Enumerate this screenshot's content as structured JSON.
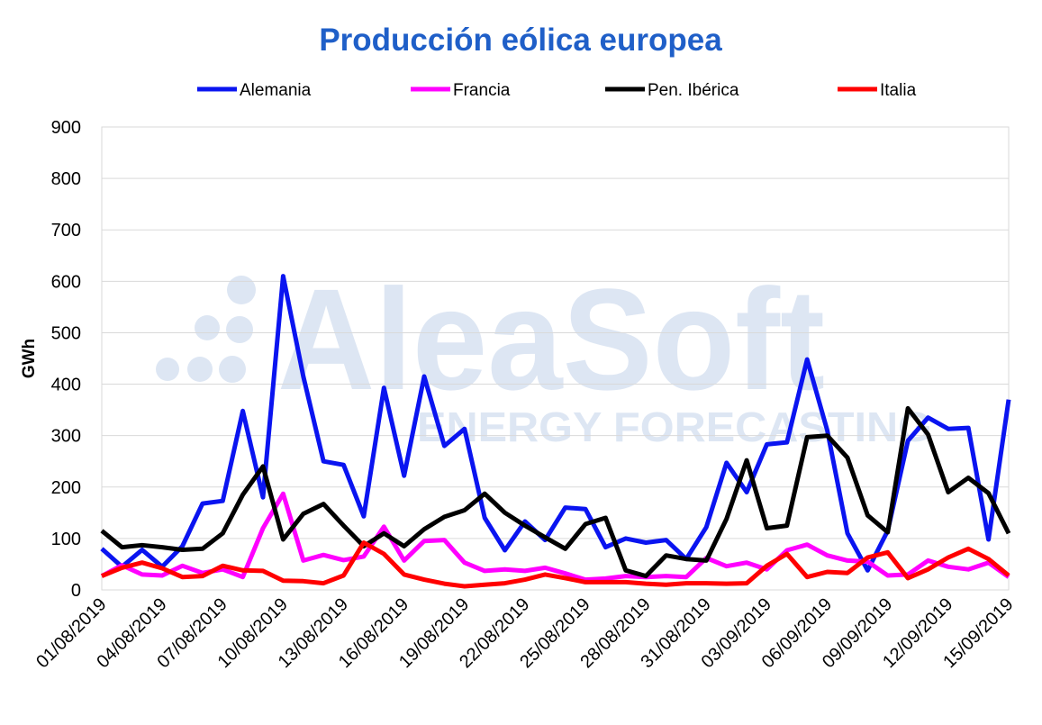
{
  "brand": {
    "title_color": "#1f5fc8",
    "watermark_color": "#dde6f3"
  },
  "watermark": {
    "name": "AleaSoft",
    "tagline": "ENERGY FORECASTING"
  },
  "chart_data": {
    "type": "line",
    "title": "Producción eólica europea",
    "ylabel": "GWh",
    "xlabel": "",
    "ylim": [
      0,
      900
    ],
    "yticks": [
      0,
      100,
      200,
      300,
      400,
      500,
      600,
      700,
      800,
      900
    ],
    "grid": "horizontal",
    "legend_position": "top",
    "xtick_labels": [
      "01/08/2019",
      "04/08/2019",
      "07/08/2019",
      "10/08/2019",
      "13/08/2019",
      "16/08/2019",
      "19/08/2019",
      "22/08/2019",
      "25/08/2019",
      "28/08/2019",
      "31/08/2019",
      "03/09/2019",
      "06/09/2019",
      "09/09/2019",
      "12/09/2019",
      "15/09/2019"
    ],
    "x": [
      "01/08/2019",
      "02/08/2019",
      "03/08/2019",
      "04/08/2019",
      "05/08/2019",
      "06/08/2019",
      "07/08/2019",
      "08/08/2019",
      "09/08/2019",
      "10/08/2019",
      "11/08/2019",
      "12/08/2019",
      "13/08/2019",
      "14/08/2019",
      "15/08/2019",
      "16/08/2019",
      "17/08/2019",
      "18/08/2019",
      "19/08/2019",
      "20/08/2019",
      "21/08/2019",
      "22/08/2019",
      "23/08/2019",
      "24/08/2019",
      "25/08/2019",
      "26/08/2019",
      "27/08/2019",
      "28/08/2019",
      "29/08/2019",
      "30/08/2019",
      "31/08/2019",
      "01/09/2019",
      "02/09/2019",
      "03/09/2019",
      "04/09/2019",
      "05/09/2019",
      "06/09/2019",
      "07/09/2019",
      "08/09/2019",
      "09/09/2019",
      "10/09/2019",
      "11/09/2019",
      "12/09/2019",
      "13/09/2019",
      "14/09/2019",
      "15/09/2019"
    ],
    "series": [
      {
        "name": "Alemania",
        "color": "#0a14f0",
        "values": [
          80,
          45,
          78,
          45,
          85,
          168,
          173,
          348,
          180,
          610,
          415,
          250,
          243,
          143,
          393,
          222,
          415,
          280,
          313,
          140,
          77,
          133,
          97,
          160,
          157,
          83,
          100,
          92,
          97,
          60,
          122,
          247,
          190,
          283,
          287,
          448,
          310,
          110,
          38,
          115,
          290,
          335,
          313,
          315,
          98,
          370
        ]
      },
      {
        "name": "Francia",
        "color": "#ff00ff",
        "values": [
          27,
          48,
          30,
          28,
          47,
          33,
          40,
          25,
          120,
          187,
          57,
          68,
          58,
          65,
          123,
          57,
          95,
          97,
          53,
          37,
          40,
          37,
          43,
          32,
          20,
          22,
          27,
          25,
          27,
          25,
          62,
          46,
          53,
          40,
          77,
          88,
          67,
          57,
          55,
          28,
          30,
          57,
          45,
          40,
          53,
          25
        ]
      },
      {
        "name": "Pen. Ibérica",
        "color": "#000000",
        "values": [
          115,
          83,
          87,
          83,
          78,
          80,
          110,
          185,
          240,
          98,
          148,
          167,
          125,
          85,
          110,
          85,
          118,
          142,
          155,
          187,
          150,
          125,
          102,
          80,
          128,
          140,
          38,
          27,
          67,
          60,
          57,
          138,
          252,
          120,
          125,
          297,
          300,
          257,
          145,
          112,
          353,
          302,
          190,
          218,
          188,
          110
        ]
      },
      {
        "name": "Italia",
        "color": "#ff0000",
        "values": [
          27,
          43,
          53,
          42,
          25,
          27,
          47,
          38,
          37,
          18,
          17,
          13,
          28,
          92,
          70,
          30,
          20,
          12,
          7,
          10,
          13,
          20,
          30,
          23,
          15,
          15,
          15,
          12,
          10,
          13,
          13,
          12,
          13,
          47,
          70,
          25,
          35,
          33,
          63,
          73,
          23,
          40,
          63,
          80,
          60,
          28
        ]
      }
    ]
  }
}
